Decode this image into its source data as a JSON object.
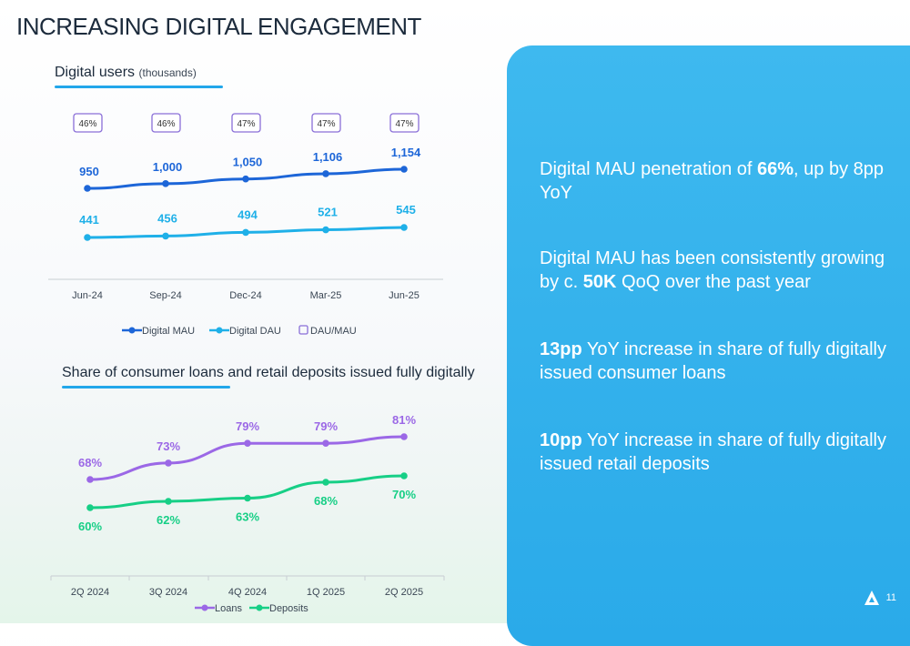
{
  "title": "INCREASING DIGITAL ENGAGEMENT",
  "chart_data": [
    {
      "type": "line",
      "title": "Digital users",
      "subtitle": "(thousands)",
      "categories": [
        "Jun-24",
        "Sep-24",
        "Dec-24",
        "Mar-25",
        "Jun-25"
      ],
      "series": [
        {
          "name": "Digital MAU",
          "values": [
            950,
            1000,
            1050,
            1106,
            1154
          ],
          "labels": [
            "950",
            "1,000",
            "1,050",
            "1,106",
            "1,154"
          ],
          "color": "#1d66d8"
        },
        {
          "name": "Digital DAU",
          "values": [
            441,
            456,
            494,
            521,
            545
          ],
          "labels": [
            "441",
            "456",
            "494",
            "521",
            "545"
          ],
          "color": "#1fb0e8"
        },
        {
          "name": "DAU/MAU",
          "values": [
            46,
            46,
            47,
            47,
            47
          ],
          "labels": [
            "46%",
            "46%",
            "47%",
            "47%",
            "47%"
          ],
          "color": "#8a6fd8"
        }
      ],
      "legend_position": "bottom",
      "grid": false
    },
    {
      "type": "line",
      "title": "Share of consumer loans and retail deposits issued fully digitally",
      "categories": [
        "2Q 2024",
        "3Q 2024",
        "4Q 2024",
        "1Q 2025",
        "2Q 2025"
      ],
      "series": [
        {
          "name": "Loans",
          "values": [
            68,
            73,
            79,
            79,
            81
          ],
          "labels": [
            "68%",
            "73%",
            "79%",
            "79%",
            "81%"
          ],
          "color": "#9b68e6"
        },
        {
          "name": "Deposits",
          "values": [
            60,
            62,
            63,
            68,
            70
          ],
          "labels": [
            "60%",
            "62%",
            "63%",
            "68%",
            "70%"
          ],
          "color": "#17cf86"
        }
      ],
      "legend_position": "bottom",
      "grid": false
    }
  ],
  "bullets": [
    {
      "pre": "Digital MAU penetration of ",
      "bold": "66%",
      "post": ", up by 8pp YoY"
    },
    {
      "pre": "Digital MAU has been consistently growing by c. ",
      "bold": "50K",
      "post": " QoQ over the past year"
    },
    {
      "pre": "",
      "bold": "13pp",
      "post": " YoY increase in share of fully digitally issued consumer loans"
    },
    {
      "pre": "",
      "bold": "10pp",
      "post": " YoY increase in share of fully digitally issued retail deposits"
    }
  ],
  "page_number": "11",
  "logo_icon": "company-logo-icon"
}
